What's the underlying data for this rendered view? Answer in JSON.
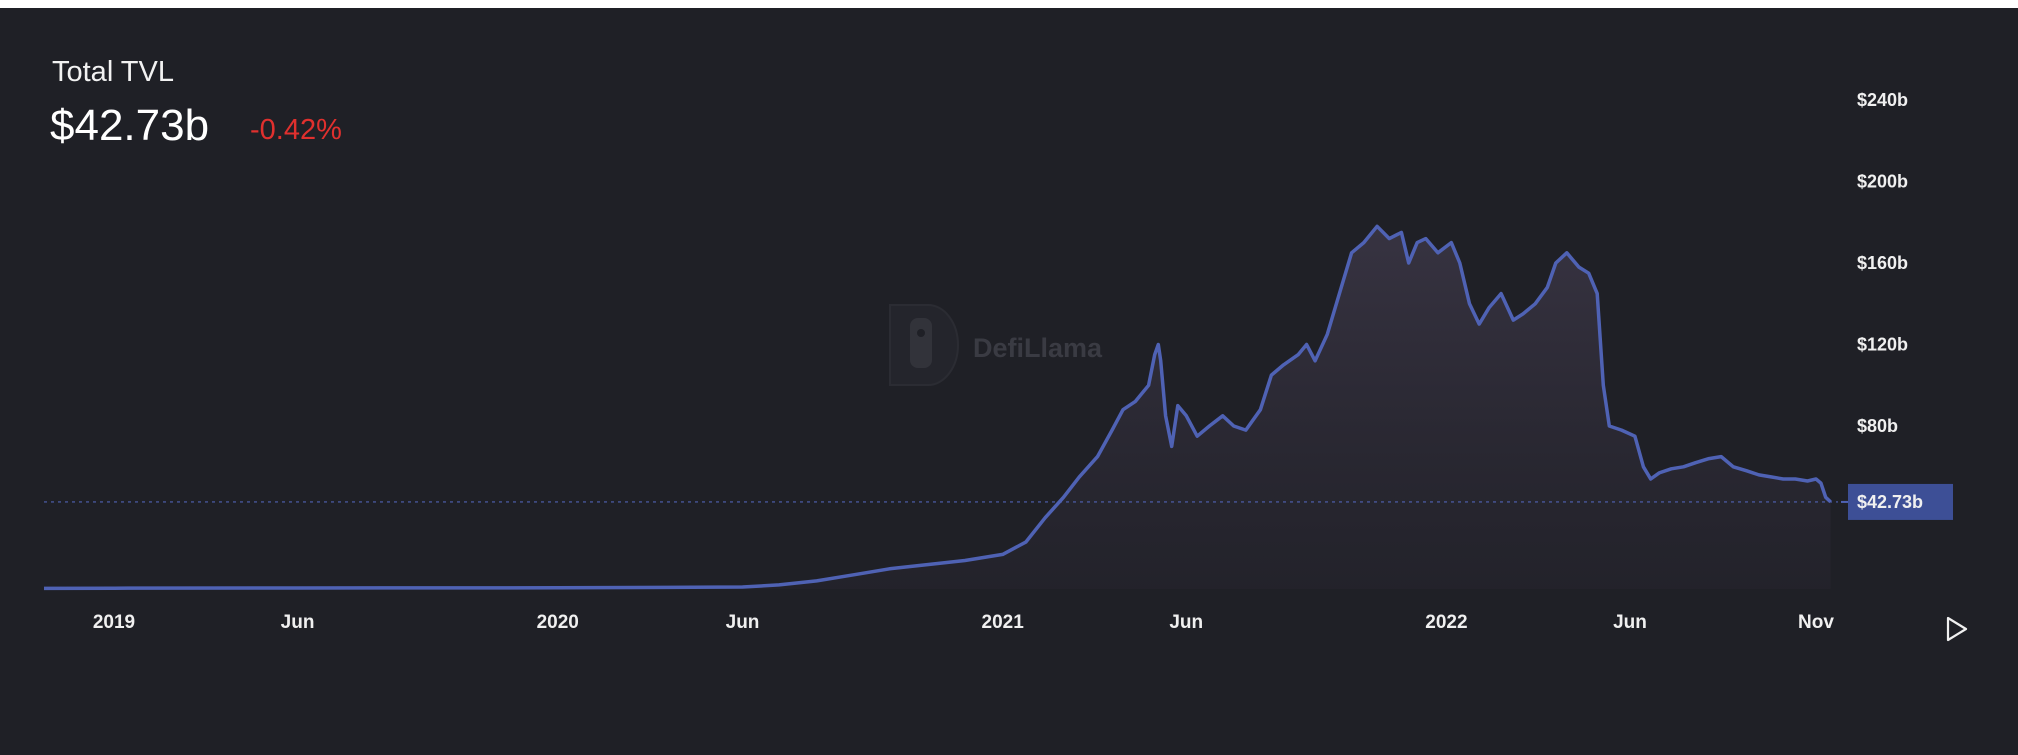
{
  "header": {
    "title": "Total TVL",
    "value": "$42.73b",
    "change": "-0.42%"
  },
  "watermark": {
    "text": "DefiLlama",
    "icon": "llama-logo-icon"
  },
  "controls": {
    "play_icon": "play-icon"
  },
  "colors": {
    "background": "#1f2026",
    "line": "#4f62b4",
    "marker": "#3d4f96",
    "negative": "#e0302e",
    "axis_text": "#f0f0f0"
  },
  "chart_data": {
    "type": "area",
    "title": "Total TVL",
    "ylabel": "",
    "xlabel": "",
    "x_ticks": [
      "2019",
      "Jun",
      "2020",
      "Jun",
      "2021",
      "Jun",
      "2022",
      "Jun",
      "Nov"
    ],
    "x_tick_dates": [
      "2019-01-01",
      "2019-06-01",
      "2020-01-01",
      "2020-06-01",
      "2021-01-01",
      "2021-06-01",
      "2022-01-01",
      "2022-06-01",
      "2022-11-01"
    ],
    "y_ticks": [
      "$80b",
      "$120b",
      "$160b",
      "$200b",
      "$240b"
    ],
    "y_tick_values": [
      80,
      120,
      160,
      200,
      240
    ],
    "ylim": [
      0,
      240
    ],
    "y_unit": "billions USD",
    "current_value_label": "$42.73b",
    "current_value": 42.73,
    "grid": false,
    "series": [
      {
        "x": [
          "2018-11-01",
          "2019-01-01",
          "2019-06-01",
          "2020-01-01",
          "2020-04-01",
          "2020-06-01",
          "2020-07-01",
          "2020-08-01",
          "2020-09-01",
          "2020-10-01",
          "2020-11-01",
          "2020-12-01",
          "2021-01-01",
          "2021-01-20",
          "2021-02-05",
          "2021-02-20",
          "2021-03-05",
          "2021-03-20",
          "2021-04-01",
          "2021-04-10",
          "2021-04-20",
          "2021-05-01",
          "2021-05-06",
          "2021-05-09",
          "2021-05-11",
          "2021-05-15",
          "2021-05-20",
          "2021-05-25",
          "2021-06-01",
          "2021-06-10",
          "2021-06-20",
          "2021-07-01",
          "2021-07-10",
          "2021-07-20",
          "2021-08-01",
          "2021-08-10",
          "2021-08-20",
          "2021-09-01",
          "2021-09-08",
          "2021-09-15",
          "2021-09-25",
          "2021-10-05",
          "2021-10-15",
          "2021-10-25",
          "2021-11-05",
          "2021-11-15",
          "2021-11-25",
          "2021-12-01",
          "2021-12-08",
          "2021-12-15",
          "2021-12-25",
          "2022-01-05",
          "2022-01-12",
          "2022-01-20",
          "2022-01-28",
          "2022-02-05",
          "2022-02-15",
          "2022-02-25",
          "2022-03-05",
          "2022-03-15",
          "2022-03-25",
          "2022-04-01",
          "2022-04-10",
          "2022-04-20",
          "2022-04-28",
          "2022-05-05",
          "2022-05-10",
          "2022-05-15",
          "2022-05-25",
          "2022-06-05",
          "2022-06-12",
          "2022-06-18",
          "2022-06-25",
          "2022-07-05",
          "2022-07-15",
          "2022-07-25",
          "2022-08-05",
          "2022-08-15",
          "2022-08-25",
          "2022-09-05",
          "2022-09-15",
          "2022-09-25",
          "2022-10-05",
          "2022-10-15",
          "2022-10-25",
          "2022-11-01",
          "2022-11-05",
          "2022-11-09",
          "2022-11-13"
        ],
        "values": [
          0.3,
          0.4,
          0.5,
          0.6,
          0.8,
          1.0,
          2.0,
          4.0,
          7.0,
          10.0,
          12.0,
          14.0,
          17.0,
          23.0,
          35.0,
          45.0,
          55.0,
          65.0,
          78.0,
          88.0,
          92.0,
          100.0,
          115.0,
          120.0,
          112.0,
          85.0,
          70.0,
          90.0,
          85.0,
          75.0,
          80.0,
          85.0,
          80.0,
          78.0,
          88.0,
          105.0,
          110.0,
          115.0,
          120.0,
          112.0,
          125.0,
          145.0,
          165.0,
          170.0,
          178.0,
          172.0,
          175.0,
          160.0,
          170.0,
          172.0,
          165.0,
          170.0,
          160.0,
          140.0,
          130.0,
          138.0,
          145.0,
          132.0,
          135.0,
          140.0,
          148.0,
          160.0,
          165.0,
          158.0,
          155.0,
          145.0,
          100.0,
          80.0,
          78.0,
          75.0,
          60.0,
          54.0,
          57.0,
          59.0,
          60.0,
          62.0,
          64.0,
          65.0,
          60.0,
          58.0,
          56.0,
          55.0,
          54.0,
          54.0,
          53.0,
          54.0,
          52.0,
          45.0,
          42.73
        ]
      }
    ]
  }
}
